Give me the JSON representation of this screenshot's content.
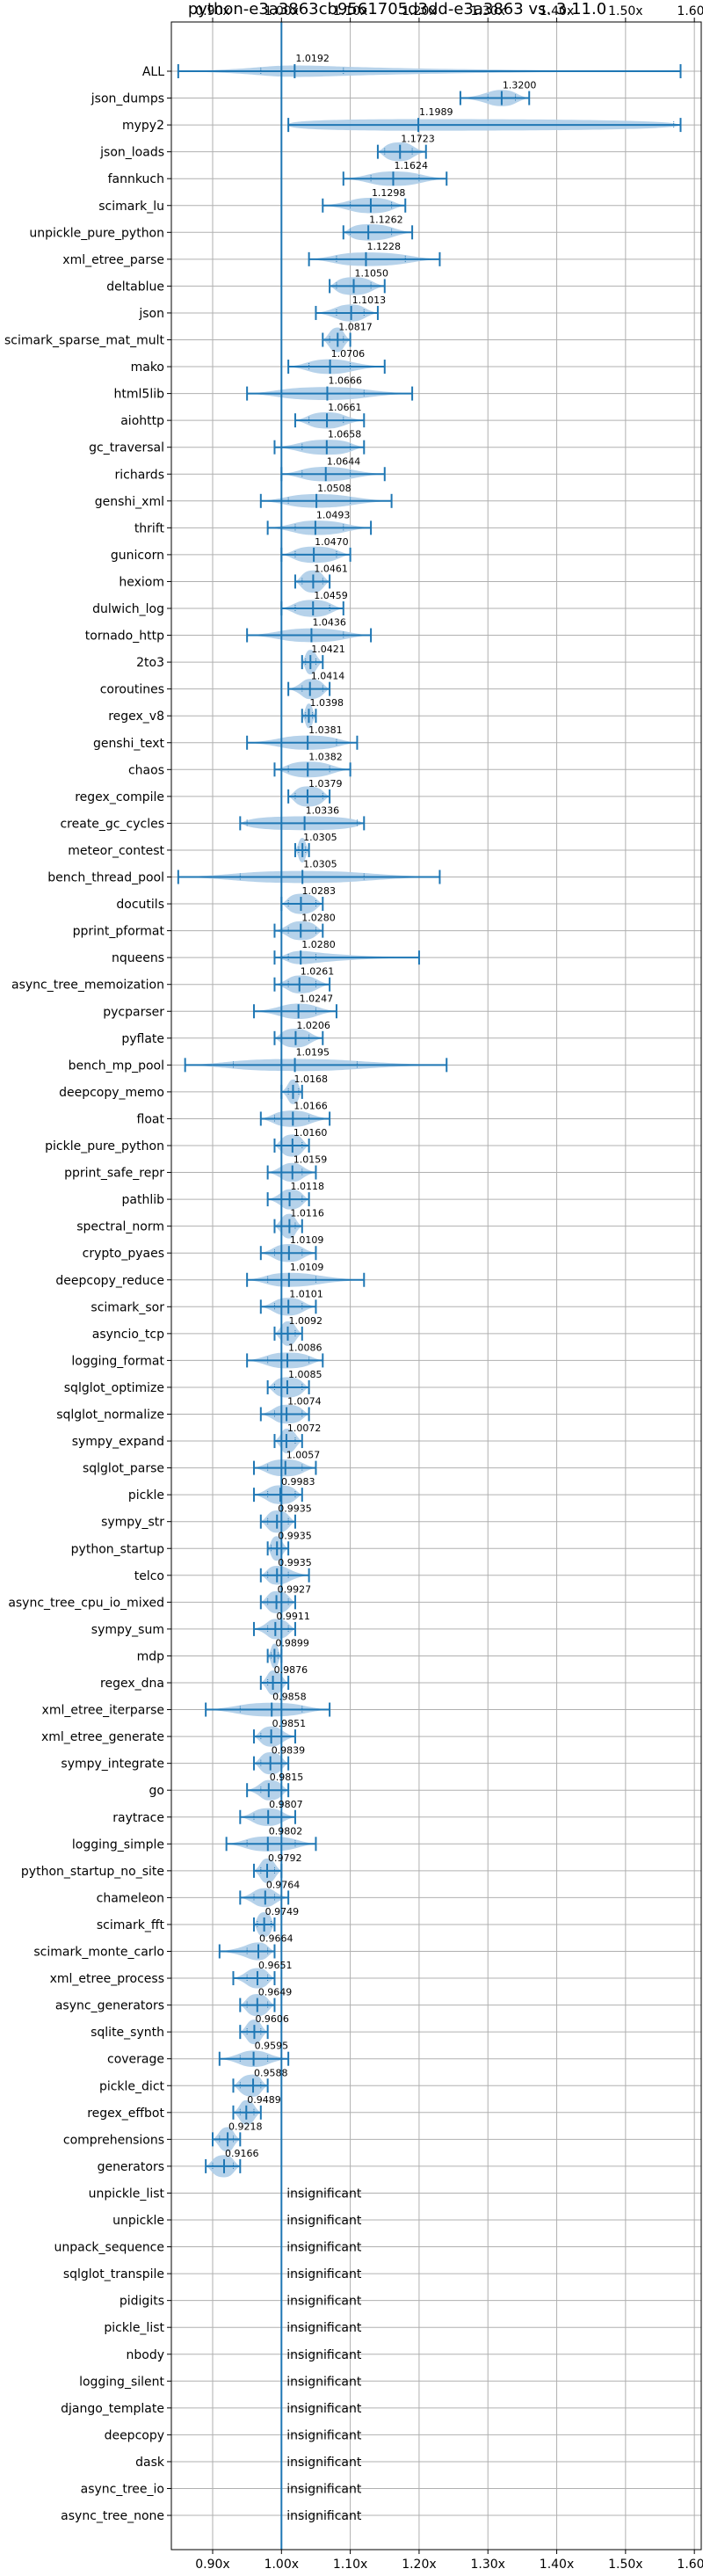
{
  "chart_data": {
    "type": "violin",
    "title": "python-e3a3863cb9561705d3dd-e3a3863 vs. 3.11.0",
    "xlim": [
      0.84,
      1.61
    ],
    "x_ticks": [
      0.9,
      1.0,
      1.1,
      1.2,
      1.3,
      1.4,
      1.5,
      1.6
    ],
    "x_tick_labels": [
      "0.90x",
      "1.00x",
      "1.10x",
      "1.20x",
      "1.30x",
      "1.40x",
      "1.50x",
      "1.60x"
    ],
    "x_tick_labels_top": [
      "0.90x",
      "1.00x",
      "1.10x",
      "1.20x",
      "1.30x",
      "1.40x",
      "1.50x",
      "1.60x"
    ],
    "reference_line": 1.0,
    "grid": true,
    "colors": {
      "violin_fill": "#aecde8",
      "line": "#1f77b4",
      "grid": "#b0b0b0",
      "axis": "#000000"
    },
    "benchmarks": [
      {
        "name": "ALL",
        "label": "1.0192",
        "median": 1.0192,
        "min": 0.85,
        "max": 1.58,
        "q1": 0.97,
        "q3": 1.09
      },
      {
        "name": "json_dumps",
        "label": "1.3200",
        "median": 1.32,
        "min": 1.26,
        "max": 1.36,
        "q1": 1.3,
        "q3": 1.34
      },
      {
        "name": "mypy2",
        "label": "1.1989",
        "median": 1.1989,
        "min": 1.01,
        "max": 1.58,
        "q1": 1.01,
        "q3": 1.57
      },
      {
        "name": "json_loads",
        "label": "1.1723",
        "median": 1.1723,
        "min": 1.14,
        "max": 1.21,
        "q1": 1.15,
        "q3": 1.19
      },
      {
        "name": "fannkuch",
        "label": "1.1624",
        "median": 1.1624,
        "min": 1.09,
        "max": 1.24,
        "q1": 1.13,
        "q3": 1.2
      },
      {
        "name": "scimark_lu",
        "label": "1.1298",
        "median": 1.1298,
        "min": 1.06,
        "max": 1.18,
        "q1": 1.1,
        "q3": 1.16
      },
      {
        "name": "unpickle_pure_python",
        "label": "1.1262",
        "median": 1.1262,
        "min": 1.09,
        "max": 1.19,
        "q1": 1.1,
        "q3": 1.16
      },
      {
        "name": "xml_etree_parse",
        "label": "1.1228",
        "median": 1.1228,
        "min": 1.04,
        "max": 1.23,
        "q1": 1.08,
        "q3": 1.18
      },
      {
        "name": "deltablue",
        "label": "1.1050",
        "median": 1.105,
        "min": 1.07,
        "max": 1.15,
        "q1": 1.08,
        "q3": 1.13
      },
      {
        "name": "json",
        "label": "1.1013",
        "median": 1.1013,
        "min": 1.05,
        "max": 1.14,
        "q1": 1.08,
        "q3": 1.12
      },
      {
        "name": "scimark_sparse_mat_mult",
        "label": "1.0817",
        "median": 1.0817,
        "min": 1.06,
        "max": 1.1,
        "q1": 1.07,
        "q3": 1.09
      },
      {
        "name": "mako",
        "label": "1.0706",
        "median": 1.0706,
        "min": 1.01,
        "max": 1.15,
        "q1": 1.04,
        "q3": 1.1
      },
      {
        "name": "html5lib",
        "label": "1.0666",
        "median": 1.0666,
        "min": 0.95,
        "max": 1.19,
        "q1": 1.0,
        "q3": 1.12
      },
      {
        "name": "aiohttp",
        "label": "1.0661",
        "median": 1.0661,
        "min": 1.02,
        "max": 1.12,
        "q1": 1.04,
        "q3": 1.09
      },
      {
        "name": "gc_traversal",
        "label": "1.0658",
        "median": 1.0658,
        "min": 0.99,
        "max": 1.12,
        "q1": 1.03,
        "q3": 1.1
      },
      {
        "name": "richards",
        "label": "1.0644",
        "median": 1.0644,
        "min": 1.0,
        "max": 1.15,
        "q1": 1.03,
        "q3": 1.1
      },
      {
        "name": "genshi_xml",
        "label": "1.0508",
        "median": 1.0508,
        "min": 0.97,
        "max": 1.16,
        "q1": 1.01,
        "q3": 1.1
      },
      {
        "name": "thrift",
        "label": "1.0493",
        "median": 1.0493,
        "min": 0.98,
        "max": 1.13,
        "q1": 1.02,
        "q3": 1.09
      },
      {
        "name": "gunicorn",
        "label": "1.0470",
        "median": 1.047,
        "min": 1.0,
        "max": 1.1,
        "q1": 1.02,
        "q3": 1.08
      },
      {
        "name": "hexiom",
        "label": "1.0461",
        "median": 1.0461,
        "min": 1.02,
        "max": 1.07,
        "q1": 1.03,
        "q3": 1.06
      },
      {
        "name": "dulwich_log",
        "label": "1.0459",
        "median": 1.0459,
        "min": 1.0,
        "max": 1.09,
        "q1": 1.02,
        "q3": 1.07
      },
      {
        "name": "tornado_http",
        "label": "1.0436",
        "median": 1.0436,
        "min": 0.95,
        "max": 1.13,
        "q1": 1.0,
        "q3": 1.09
      },
      {
        "name": "2to3",
        "label": "1.0421",
        "median": 1.0421,
        "min": 1.03,
        "max": 1.06,
        "q1": 1.035,
        "q3": 1.05
      },
      {
        "name": "coroutines",
        "label": "1.0414",
        "median": 1.0414,
        "min": 1.01,
        "max": 1.07,
        "q1": 1.03,
        "q3": 1.06
      },
      {
        "name": "regex_v8",
        "label": "1.0398",
        "median": 1.0398,
        "min": 1.03,
        "max": 1.05,
        "q1": 1.035,
        "q3": 1.045
      },
      {
        "name": "genshi_text",
        "label": "1.0381",
        "median": 1.0381,
        "min": 0.95,
        "max": 1.11,
        "q1": 1.0,
        "q3": 1.08
      },
      {
        "name": "chaos",
        "label": "1.0382",
        "median": 1.0382,
        "min": 0.99,
        "max": 1.1,
        "q1": 1.01,
        "q3": 1.07
      },
      {
        "name": "regex_compile",
        "label": "1.0379",
        "median": 1.0379,
        "min": 1.01,
        "max": 1.07,
        "q1": 1.02,
        "q3": 1.06
      },
      {
        "name": "create_gc_cycles",
        "label": "1.0336",
        "median": 1.0336,
        "min": 0.94,
        "max": 1.12,
        "q1": 0.95,
        "q3": 1.11
      },
      {
        "name": "meteor_contest",
        "label": "1.0305",
        "median": 1.0305,
        "min": 1.02,
        "max": 1.04,
        "q1": 1.025,
        "q3": 1.035
      },
      {
        "name": "bench_thread_pool",
        "label": "1.0305",
        "median": 1.0305,
        "min": 0.85,
        "max": 1.23,
        "q1": 0.94,
        "q3": 1.12
      },
      {
        "name": "docutils",
        "label": "1.0283",
        "median": 1.0283,
        "min": 1.0,
        "max": 1.06,
        "q1": 1.01,
        "q3": 1.05
      },
      {
        "name": "pprint_pformat",
        "label": "1.0280",
        "median": 1.028,
        "min": 0.99,
        "max": 1.06,
        "q1": 1.01,
        "q3": 1.05
      },
      {
        "name": "nqueens",
        "label": "1.0280",
        "median": 1.028,
        "min": 0.99,
        "max": 1.2,
        "q1": 1.01,
        "q3": 1.05
      },
      {
        "name": "async_tree_memoization",
        "label": "1.0261",
        "median": 1.0261,
        "min": 0.99,
        "max": 1.07,
        "q1": 1.01,
        "q3": 1.05
      },
      {
        "name": "pycparser",
        "label": "1.0247",
        "median": 1.0247,
        "min": 0.96,
        "max": 1.08,
        "q1": 1.0,
        "q3": 1.05
      },
      {
        "name": "pyflate",
        "label": "1.0206",
        "median": 1.0206,
        "min": 0.99,
        "max": 1.06,
        "q1": 1.0,
        "q3": 1.04
      },
      {
        "name": "bench_mp_pool",
        "label": "1.0195",
        "median": 1.0195,
        "min": 0.86,
        "max": 1.24,
        "q1": 0.93,
        "q3": 1.11
      },
      {
        "name": "deepcopy_memo",
        "label": "1.0168",
        "median": 1.0168,
        "min": 1.0,
        "max": 1.03,
        "q1": 1.01,
        "q3": 1.025
      },
      {
        "name": "float",
        "label": "1.0166",
        "median": 1.0166,
        "min": 0.97,
        "max": 1.07,
        "q1": 0.99,
        "q3": 1.04
      },
      {
        "name": "pickle_pure_python",
        "label": "1.0160",
        "median": 1.016,
        "min": 0.99,
        "max": 1.04,
        "q1": 1.0,
        "q3": 1.03
      },
      {
        "name": "pprint_safe_repr",
        "label": "1.0159",
        "median": 1.0159,
        "min": 0.98,
        "max": 1.05,
        "q1": 1.0,
        "q3": 1.03
      },
      {
        "name": "pathlib",
        "label": "1.0118",
        "median": 1.0118,
        "min": 0.98,
        "max": 1.04,
        "q1": 1.0,
        "q3": 1.03
      },
      {
        "name": "spectral_norm",
        "label": "1.0116",
        "median": 1.0116,
        "min": 0.99,
        "max": 1.03,
        "q1": 1.0,
        "q3": 1.02
      },
      {
        "name": "crypto_pyaes",
        "label": "1.0109",
        "median": 1.0109,
        "min": 0.97,
        "max": 1.05,
        "q1": 0.99,
        "q3": 1.03
      },
      {
        "name": "deepcopy_reduce",
        "label": "1.0109",
        "median": 1.0109,
        "min": 0.95,
        "max": 1.12,
        "q1": 0.98,
        "q3": 1.05
      },
      {
        "name": "scimark_sor",
        "label": "1.0101",
        "median": 1.0101,
        "min": 0.97,
        "max": 1.05,
        "q1": 0.99,
        "q3": 1.03
      },
      {
        "name": "asyncio_tcp",
        "label": "1.0092",
        "median": 1.0092,
        "min": 0.99,
        "max": 1.03,
        "q1": 1.0,
        "q3": 1.02
      },
      {
        "name": "logging_format",
        "label": "1.0086",
        "median": 1.0086,
        "min": 0.95,
        "max": 1.06,
        "q1": 0.98,
        "q3": 1.04
      },
      {
        "name": "sqlglot_optimize",
        "label": "1.0085",
        "median": 1.0085,
        "min": 0.98,
        "max": 1.04,
        "q1": 0.99,
        "q3": 1.03
      },
      {
        "name": "sqlglot_normalize",
        "label": "1.0074",
        "median": 1.0074,
        "min": 0.97,
        "max": 1.04,
        "q1": 0.99,
        "q3": 1.03
      },
      {
        "name": "sympy_expand",
        "label": "1.0072",
        "median": 1.0072,
        "min": 0.99,
        "max": 1.03,
        "q1": 1.0,
        "q3": 1.02
      },
      {
        "name": "sqlglot_parse",
        "label": "1.0057",
        "median": 1.0057,
        "min": 0.96,
        "max": 1.05,
        "q1": 0.98,
        "q3": 1.03
      },
      {
        "name": "pickle",
        "label": "0.9983",
        "median": 0.9983,
        "min": 0.96,
        "max": 1.03,
        "q1": 0.98,
        "q3": 1.02
      },
      {
        "name": "sympy_str",
        "label": "0.9935",
        "median": 0.9935,
        "min": 0.97,
        "max": 1.02,
        "q1": 0.98,
        "q3": 1.01
      },
      {
        "name": "python_startup",
        "label": "0.9935",
        "median": 0.9935,
        "min": 0.98,
        "max": 1.01,
        "q1": 0.985,
        "q3": 1.0
      },
      {
        "name": "telco",
        "label": "0.9935",
        "median": 0.9935,
        "min": 0.97,
        "max": 1.04,
        "q1": 0.98,
        "q3": 1.01
      },
      {
        "name": "async_tree_cpu_io_mixed",
        "label": "0.9927",
        "median": 0.9927,
        "min": 0.97,
        "max": 1.02,
        "q1": 0.98,
        "q3": 1.01
      },
      {
        "name": "sympy_sum",
        "label": "0.9911",
        "median": 0.9911,
        "min": 0.96,
        "max": 1.02,
        "q1": 0.98,
        "q3": 1.01
      },
      {
        "name": "mdp",
        "label": "0.9899",
        "median": 0.9899,
        "min": 0.98,
        "max": 1.0,
        "q1": 0.985,
        "q3": 0.995
      },
      {
        "name": "regex_dna",
        "label": "0.9876",
        "median": 0.9876,
        "min": 0.97,
        "max": 1.01,
        "q1": 0.98,
        "q3": 1.0
      },
      {
        "name": "xml_etree_iterparse",
        "label": "0.9858",
        "median": 0.9858,
        "min": 0.89,
        "max": 1.07,
        "q1": 0.94,
        "q3": 1.03
      },
      {
        "name": "xml_etree_generate",
        "label": "0.9851",
        "median": 0.9851,
        "min": 0.96,
        "max": 1.02,
        "q1": 0.97,
        "q3": 1.0
      },
      {
        "name": "sympy_integrate",
        "label": "0.9839",
        "median": 0.9839,
        "min": 0.96,
        "max": 1.01,
        "q1": 0.97,
        "q3": 1.0
      },
      {
        "name": "go",
        "label": "0.9815",
        "median": 0.9815,
        "min": 0.95,
        "max": 1.01,
        "q1": 0.97,
        "q3": 1.0
      },
      {
        "name": "raytrace",
        "label": "0.9807",
        "median": 0.9807,
        "min": 0.94,
        "max": 1.02,
        "q1": 0.96,
        "q3": 1.0
      },
      {
        "name": "logging_simple",
        "label": "0.9802",
        "median": 0.9802,
        "min": 0.92,
        "max": 1.05,
        "q1": 0.95,
        "q3": 1.02
      },
      {
        "name": "python_startup_no_site",
        "label": "0.9792",
        "median": 0.9792,
        "min": 0.96,
        "max": 1.0,
        "q1": 0.97,
        "q3": 0.99
      },
      {
        "name": "chameleon",
        "label": "0.9764",
        "median": 0.9764,
        "min": 0.94,
        "max": 1.01,
        "q1": 0.96,
        "q3": 0.99
      },
      {
        "name": "scimark_fft",
        "label": "0.9749",
        "median": 0.9749,
        "min": 0.96,
        "max": 0.99,
        "q1": 0.965,
        "q3": 0.985
      },
      {
        "name": "scimark_monte_carlo",
        "label": "0.9664",
        "median": 0.9664,
        "min": 0.91,
        "max": 0.99,
        "q1": 0.95,
        "q3": 0.98
      },
      {
        "name": "xml_etree_process",
        "label": "0.9651",
        "median": 0.9651,
        "min": 0.93,
        "max": 0.99,
        "q1": 0.95,
        "q3": 0.98
      },
      {
        "name": "async_generators",
        "label": "0.9649",
        "median": 0.9649,
        "min": 0.94,
        "max": 0.99,
        "q1": 0.95,
        "q3": 0.98
      },
      {
        "name": "sqlite_synth",
        "label": "0.9606",
        "median": 0.9606,
        "min": 0.94,
        "max": 0.98,
        "q1": 0.95,
        "q3": 0.97
      },
      {
        "name": "coverage",
        "label": "0.9595",
        "median": 0.9595,
        "min": 0.91,
        "max": 1.01,
        "q1": 0.94,
        "q3": 0.98
      },
      {
        "name": "pickle_dict",
        "label": "0.9588",
        "median": 0.9588,
        "min": 0.93,
        "max": 0.98,
        "q1": 0.94,
        "q3": 0.97
      },
      {
        "name": "regex_effbot",
        "label": "0.9489",
        "median": 0.9489,
        "min": 0.93,
        "max": 0.97,
        "q1": 0.94,
        "q3": 0.96
      },
      {
        "name": "comprehensions",
        "label": "0.9218",
        "median": 0.9218,
        "min": 0.9,
        "max": 0.94,
        "q1": 0.91,
        "q3": 0.93
      },
      {
        "name": "generators",
        "label": "0.9166",
        "median": 0.9166,
        "min": 0.89,
        "max": 0.94,
        "q1": 0.9,
        "q3": 0.93
      },
      {
        "name": "unpickle_list",
        "label": "insignificant",
        "insignificant": true
      },
      {
        "name": "unpickle",
        "label": "insignificant",
        "insignificant": true
      },
      {
        "name": "unpack_sequence",
        "label": "insignificant",
        "insignificant": true
      },
      {
        "name": "sqlglot_transpile",
        "label": "insignificant",
        "insignificant": true
      },
      {
        "name": "pidigits",
        "label": "insignificant",
        "insignificant": true
      },
      {
        "name": "pickle_list",
        "label": "insignificant",
        "insignificant": true
      },
      {
        "name": "nbody",
        "label": "insignificant",
        "insignificant": true
      },
      {
        "name": "logging_silent",
        "label": "insignificant",
        "insignificant": true
      },
      {
        "name": "django_template",
        "label": "insignificant",
        "insignificant": true
      },
      {
        "name": "deepcopy",
        "label": "insignificant",
        "insignificant": true
      },
      {
        "name": "dask",
        "label": "insignificant",
        "insignificant": true
      },
      {
        "name": "async_tree_io",
        "label": "insignificant",
        "insignificant": true
      },
      {
        "name": "async_tree_none",
        "label": "insignificant",
        "insignificant": true
      }
    ]
  }
}
